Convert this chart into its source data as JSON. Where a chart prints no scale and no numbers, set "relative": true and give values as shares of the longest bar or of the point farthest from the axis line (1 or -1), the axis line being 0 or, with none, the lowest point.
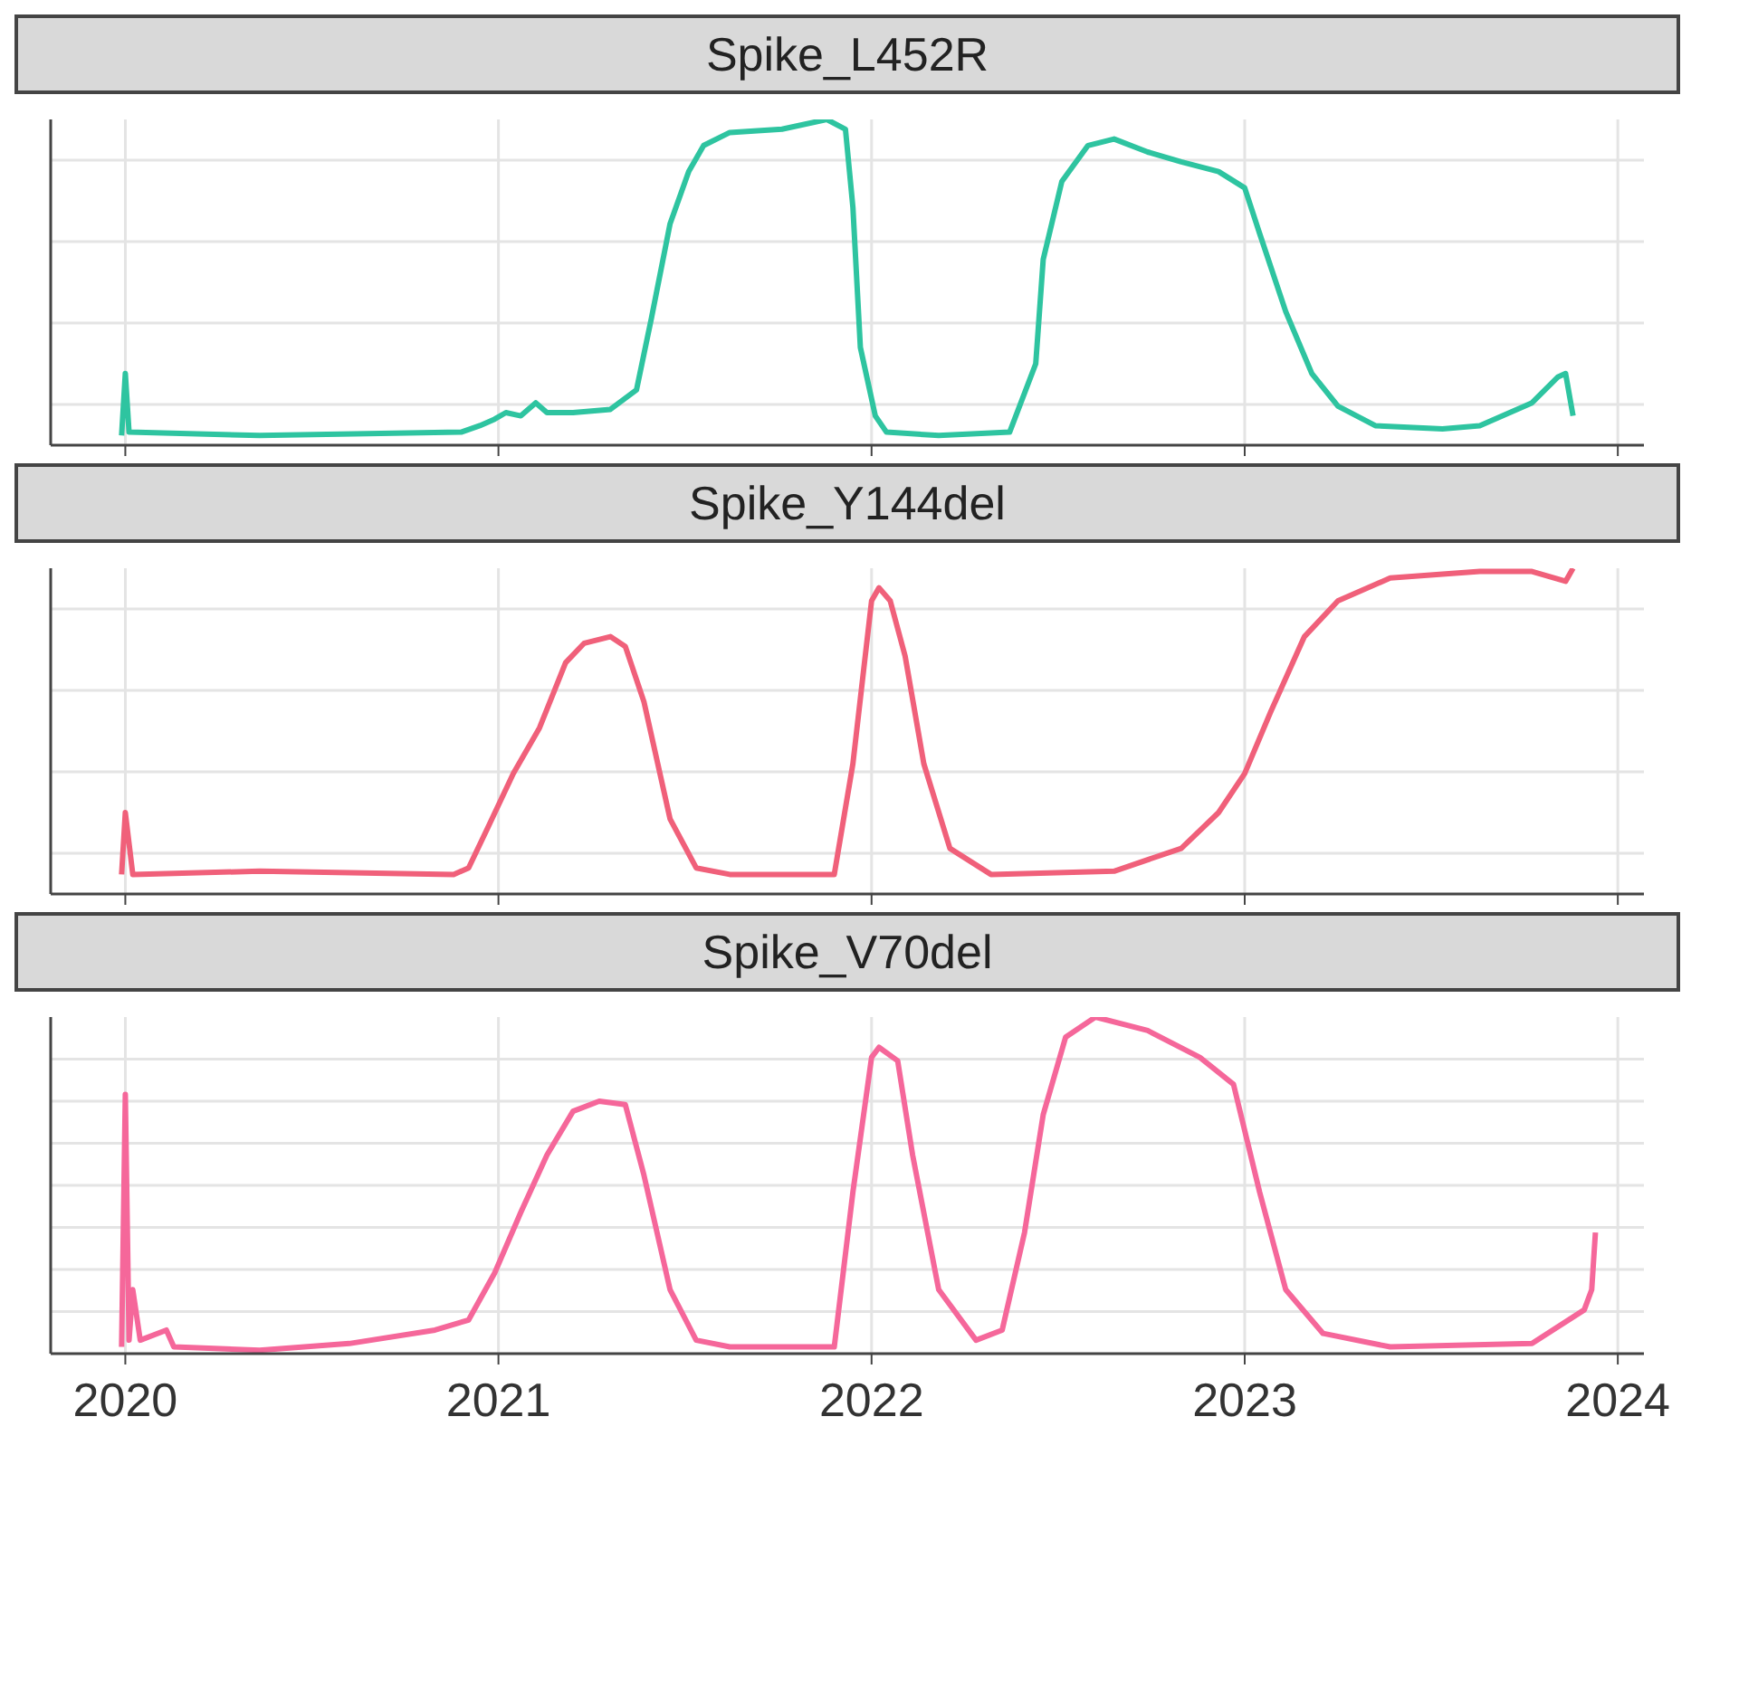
{
  "chart_data": [
    {
      "type": "line",
      "title": "Spike_L452R",
      "relative": true,
      "grid": true,
      "tick_labels": false,
      "xlim": [
        2019.8,
        2024.07
      ],
      "xticks": [
        2020,
        2021,
        2022,
        2023,
        2024
      ],
      "series": [
        {
          "color": "#2ec4a0",
          "x": [
            2019.99,
            2020.0,
            2020.01,
            2020.36,
            2020.9,
            2020.95,
            2020.99,
            2021.02,
            2021.06,
            2021.1,
            2021.13,
            2021.2,
            2021.3,
            2021.37,
            2021.41,
            2021.46,
            2021.51,
            2021.55,
            2021.62,
            2021.76,
            2021.88,
            2021.93,
            2021.95,
            2021.97,
            2022.01,
            2022.04,
            2022.18,
            2022.37,
            2022.44,
            2022.46,
            2022.51,
            2022.58,
            2022.65,
            2022.74,
            2022.83,
            2022.93,
            2023.0,
            2023.04,
            2023.11,
            2023.18,
            2023.25,
            2023.35,
            2023.53,
            2023.63,
            2023.77,
            2023.84,
            2023.86,
            2023.88
          ],
          "values": [
            0.03,
            0.22,
            0.04,
            0.03,
            0.04,
            0.06,
            0.08,
            0.1,
            0.09,
            0.13,
            0.1,
            0.1,
            0.11,
            0.17,
            0.39,
            0.68,
            0.84,
            0.92,
            0.96,
            0.97,
            1.0,
            0.97,
            0.73,
            0.3,
            0.09,
            0.04,
            0.03,
            0.04,
            0.25,
            0.57,
            0.81,
            0.92,
            0.94,
            0.9,
            0.87,
            0.84,
            0.79,
            0.65,
            0.41,
            0.22,
            0.12,
            0.06,
            0.05,
            0.06,
            0.13,
            0.21,
            0.22,
            0.09
          ]
        }
      ]
    },
    {
      "type": "line",
      "title": "Spike_Y144del",
      "relative": true,
      "grid": true,
      "tick_labels": false,
      "xlim": [
        2019.8,
        2024.07
      ],
      "xticks": [
        2020,
        2021,
        2022,
        2023,
        2024
      ],
      "series": [
        {
          "color": "#f0607a",
          "x": [
            2019.99,
            2020.0,
            2020.02,
            2020.36,
            2020.88,
            2020.92,
            2020.97,
            2021.04,
            2021.11,
            2021.18,
            2021.23,
            2021.3,
            2021.34,
            2021.39,
            2021.46,
            2021.53,
            2021.62,
            2021.9,
            2021.95,
            2022.0,
            2022.02,
            2022.05,
            2022.09,
            2022.14,
            2022.21,
            2022.32,
            2022.65,
            2022.83,
            2022.93,
            2023.0,
            2023.07,
            2023.16,
            2023.25,
            2023.39,
            2023.63,
            2023.77,
            2023.86,
            2023.88
          ],
          "values": [
            0.06,
            0.25,
            0.06,
            0.07,
            0.06,
            0.08,
            0.2,
            0.37,
            0.51,
            0.71,
            0.77,
            0.79,
            0.76,
            0.59,
            0.23,
            0.08,
            0.06,
            0.06,
            0.4,
            0.9,
            0.94,
            0.9,
            0.73,
            0.4,
            0.14,
            0.06,
            0.07,
            0.14,
            0.25,
            0.37,
            0.56,
            0.79,
            0.9,
            0.97,
            0.99,
            0.99,
            0.96,
            1.0
          ]
        }
      ]
    },
    {
      "type": "line",
      "title": "Spike_V70del",
      "relative": true,
      "grid": true,
      "tick_labels": "x",
      "xlim": [
        2019.8,
        2024.07
      ],
      "xticks": [
        2020,
        2021,
        2022,
        2023,
        2024
      ],
      "series": [
        {
          "color": "#f5679a",
          "x": [
            2019.99,
            2020.0,
            2020.01,
            2020.02,
            2020.04,
            2020.11,
            2020.13,
            2020.36,
            2020.6,
            2020.83,
            2020.92,
            2020.99,
            2021.06,
            2021.13,
            2021.2,
            2021.27,
            2021.34,
            2021.39,
            2021.46,
            2021.53,
            2021.62,
            2021.9,
            2021.95,
            2022.0,
            2022.02,
            2022.07,
            2022.11,
            2022.18,
            2022.28,
            2022.35,
            2022.41,
            2022.46,
            2022.52,
            2022.6,
            2022.74,
            2022.88,
            2022.97,
            2023.04,
            2023.11,
            2023.21,
            2023.39,
            2023.77,
            2023.91,
            2023.93,
            2023.94
          ],
          "values": [
            0.02,
            0.77,
            0.04,
            0.19,
            0.04,
            0.07,
            0.02,
            0.01,
            0.03,
            0.07,
            0.1,
            0.24,
            0.42,
            0.59,
            0.72,
            0.75,
            0.74,
            0.53,
            0.19,
            0.04,
            0.02,
            0.02,
            0.48,
            0.88,
            0.91,
            0.87,
            0.59,
            0.19,
            0.04,
            0.07,
            0.36,
            0.71,
            0.94,
            1.0,
            0.96,
            0.88,
            0.8,
            0.48,
            0.19,
            0.06,
            0.02,
            0.03,
            0.13,
            0.19,
            0.36
          ]
        }
      ]
    }
  ]
}
